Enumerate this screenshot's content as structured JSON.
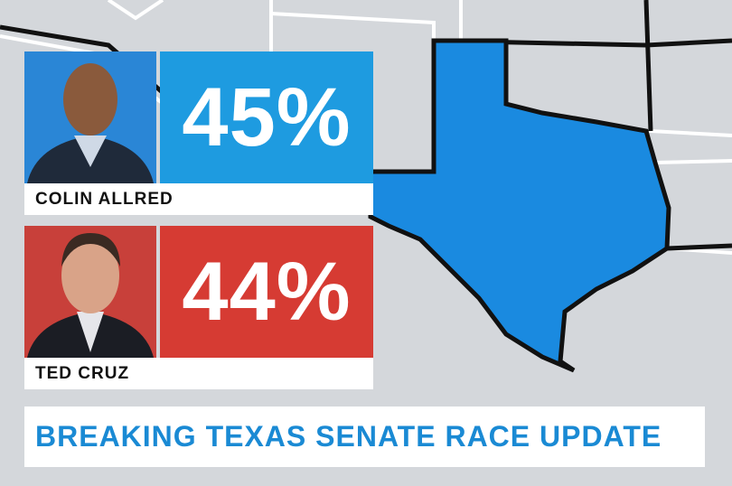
{
  "candidates": [
    {
      "name": "COLIN ALLRED",
      "percent": "45%"
    },
    {
      "name": "TED CRUZ",
      "percent": "44%"
    }
  ],
  "banner": "BREAKING TEXAS SENATE RACE UPDATE"
}
